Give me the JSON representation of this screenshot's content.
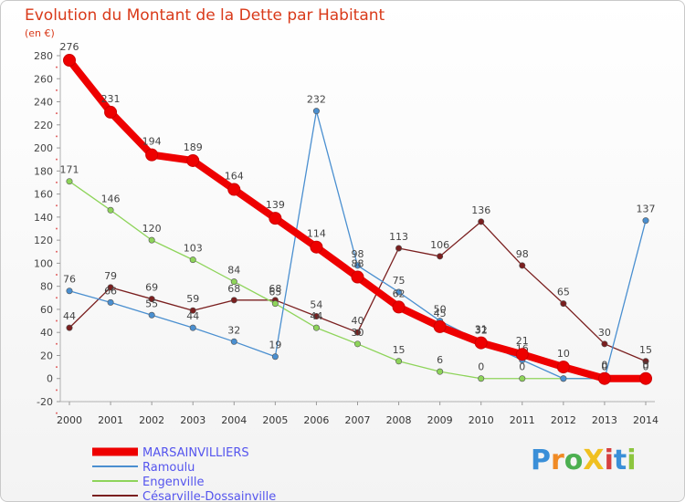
{
  "title": "Evolution du Montant de la Dette par Habitant",
  "unit": "(en €)",
  "brand": "ProXiti",
  "chart_data": {
    "type": "line",
    "x": [
      2000,
      2001,
      2002,
      2003,
      2004,
      2005,
      2006,
      2007,
      2008,
      2009,
      2010,
      2011,
      2012,
      2013,
      2014
    ],
    "ylim": [
      -20,
      280
    ],
    "yticks": [
      -20,
      0,
      20,
      40,
      60,
      80,
      100,
      120,
      140,
      160,
      180,
      200,
      220,
      240,
      260,
      280
    ],
    "grid": false,
    "legend_position": "bottom-left",
    "series": [
      {
        "name": "MARSAINVILLIERS",
        "color": "#ee0000",
        "values": [
          276,
          231,
          194,
          189,
          164,
          139,
          114,
          88,
          62,
          45,
          31,
          21,
          10,
          0,
          0
        ]
      },
      {
        "name": "Ramoulu",
        "color": "#4a8fd0",
        "values": [
          76,
          66,
          55,
          44,
          32,
          19,
          232,
          98,
          75,
          50,
          32,
          16,
          0,
          0,
          137
        ]
      },
      {
        "name": "Engenville",
        "color": "#8ed45a",
        "values": [
          171,
          146,
          120,
          103,
          84,
          65,
          44,
          30,
          15,
          6,
          0,
          0,
          0,
          0,
          0
        ]
      },
      {
        "name": "Césarville-Dossainville",
        "color": "#7a1f1f",
        "values": [
          44,
          79,
          69,
          59,
          68,
          68,
          54,
          40,
          113,
          106,
          136,
          98,
          65,
          30,
          15
        ]
      }
    ]
  }
}
